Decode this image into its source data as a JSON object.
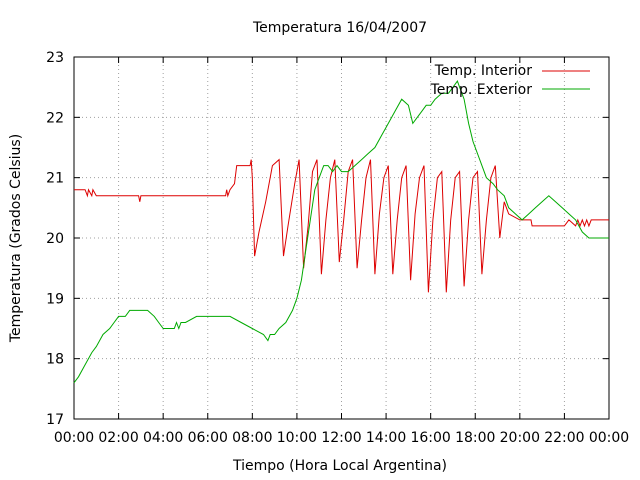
{
  "chart_data": {
    "type": "line",
    "title": "Temperatura 16/04/2007",
    "xlabel": "Tiempo (Hora Local Argentina)",
    "ylabel": "Temperatura (Grados Celsius)",
    "xlim": [
      0,
      24
    ],
    "ylim": [
      17,
      23
    ],
    "x_ticks": [
      {
        "value": 0,
        "label": "00:00"
      },
      {
        "value": 2,
        "label": "02:00"
      },
      {
        "value": 4,
        "label": "04:00"
      },
      {
        "value": 6,
        "label": "06:00"
      },
      {
        "value": 8,
        "label": "08:00"
      },
      {
        "value": 10,
        "label": "10:00"
      },
      {
        "value": 12,
        "label": "12:00"
      },
      {
        "value": 14,
        "label": "14:00"
      },
      {
        "value": 16,
        "label": "16:00"
      },
      {
        "value": 18,
        "label": "18:00"
      },
      {
        "value": 20,
        "label": "20:00"
      },
      {
        "value": 22,
        "label": "22:00"
      },
      {
        "value": 24,
        "label": "00:00"
      }
    ],
    "y_ticks": [
      {
        "value": 17,
        "label": "17"
      },
      {
        "value": 18,
        "label": "18"
      },
      {
        "value": 19,
        "label": "19"
      },
      {
        "value": 20,
        "label": "20"
      },
      {
        "value": 21,
        "label": "21"
      },
      {
        "value": 22,
        "label": "22"
      },
      {
        "value": 23,
        "label": "23"
      }
    ],
    "grid": true,
    "legend_position": "top-right",
    "series": [
      {
        "name": "Temp. Interior",
        "color": "#dd0000",
        "x": [
          0,
          0.3,
          0.5,
          0.6,
          0.65,
          0.8,
          0.85,
          1.0,
          2.5,
          2.9,
          2.95,
          3.0,
          4.0,
          6.0,
          6.8,
          6.85,
          6.9,
          7.0,
          7.2,
          7.3,
          7.6,
          7.9,
          7.95,
          8.0,
          8.1,
          8.3,
          8.6,
          8.9,
          9.2,
          9.4,
          9.6,
          9.9,
          10.1,
          10.3,
          10.5,
          10.7,
          10.9,
          11.1,
          11.3,
          11.5,
          11.7,
          11.9,
          12.1,
          12.3,
          12.5,
          12.7,
          12.9,
          13.1,
          13.3,
          13.5,
          13.7,
          13.9,
          14.1,
          14.3,
          14.5,
          14.7,
          14.9,
          15.1,
          15.3,
          15.5,
          15.7,
          15.9,
          16.1,
          16.3,
          16.5,
          16.7,
          16.9,
          17.1,
          17.3,
          17.5,
          17.7,
          17.9,
          18.1,
          18.3,
          18.5,
          18.7,
          18.9,
          19.1,
          19.3,
          19.5,
          20.0,
          20.5,
          20.55,
          20.6,
          21.5,
          22.0,
          22.2,
          22.5,
          22.6,
          22.7,
          22.8,
          22.9,
          23.0,
          23.1,
          23.2,
          23.3,
          24.0
        ],
        "y": [
          20.8,
          20.8,
          20.8,
          20.7,
          20.8,
          20.7,
          20.8,
          20.7,
          20.7,
          20.7,
          20.6,
          20.7,
          20.7,
          20.7,
          20.7,
          20.8,
          20.7,
          20.8,
          20.9,
          21.2,
          21.2,
          21.2,
          21.3,
          21.0,
          19.7,
          20.1,
          20.6,
          21.2,
          21.3,
          19.7,
          20.2,
          20.9,
          21.3,
          19.5,
          20.2,
          21.1,
          21.3,
          19.4,
          20.3,
          21.0,
          21.3,
          19.6,
          20.3,
          21.1,
          21.3,
          19.5,
          20.3,
          21.0,
          21.3,
          19.4,
          20.4,
          21.0,
          21.2,
          19.4,
          20.3,
          21.0,
          21.2,
          19.3,
          20.4,
          21.0,
          21.2,
          19.1,
          20.3,
          21.0,
          21.1,
          19.1,
          20.3,
          21.0,
          21.1,
          19.2,
          20.3,
          21.0,
          21.1,
          19.4,
          20.3,
          21.0,
          21.2,
          20.0,
          20.6,
          20.4,
          20.3,
          20.3,
          20.2,
          20.2,
          20.2,
          20.2,
          20.3,
          20.2,
          20.3,
          20.2,
          20.3,
          20.2,
          20.3,
          20.2,
          20.3,
          20.3,
          20.3
        ]
      },
      {
        "name": "Temp. Exterior",
        "color": "#00aa00",
        "x": [
          0,
          0.2,
          0.5,
          0.8,
          1.0,
          1.3,
          1.6,
          1.8,
          2.0,
          2.3,
          2.5,
          3.3,
          3.6,
          3.8,
          4.0,
          4.5,
          4.6,
          4.7,
          4.8,
          5.0,
          5.5,
          6.0,
          7.0,
          7.5,
          8.0,
          8.5,
          8.7,
          8.8,
          9.0,
          9.2,
          9.5,
          9.8,
          10.0,
          10.2,
          10.4,
          10.6,
          10.8,
          11.0,
          11.2,
          11.4,
          11.6,
          11.8,
          12.0,
          12.3,
          12.6,
          12.9,
          13.2,
          13.5,
          13.8,
          14.1,
          14.4,
          14.7,
          15.0,
          15.2,
          15.4,
          15.6,
          15.8,
          16.0,
          16.2,
          16.5,
          16.8,
          17.0,
          17.2,
          17.3,
          17.5,
          17.7,
          17.9,
          18.2,
          18.5,
          18.8,
          19.0,
          19.3,
          19.5,
          19.8,
          20.1,
          20.4,
          20.7,
          21.0,
          21.3,
          21.6,
          21.9,
          22.2,
          22.5,
          22.8,
          23.1,
          23.4,
          23.7,
          24.0
        ],
        "y": [
          17.6,
          17.7,
          17.9,
          18.1,
          18.2,
          18.4,
          18.5,
          18.6,
          18.7,
          18.7,
          18.8,
          18.8,
          18.7,
          18.6,
          18.5,
          18.5,
          18.6,
          18.5,
          18.6,
          18.6,
          18.7,
          18.7,
          18.7,
          18.6,
          18.5,
          18.4,
          18.3,
          18.4,
          18.4,
          18.5,
          18.6,
          18.8,
          19.0,
          19.3,
          19.8,
          20.3,
          20.8,
          21.0,
          21.2,
          21.2,
          21.1,
          21.2,
          21.1,
          21.1,
          21.2,
          21.3,
          21.4,
          21.5,
          21.7,
          21.9,
          22.1,
          22.3,
          22.2,
          21.9,
          22.0,
          22.1,
          22.2,
          22.2,
          22.3,
          22.4,
          22.4,
          22.5,
          22.6,
          22.5,
          22.3,
          21.9,
          21.6,
          21.3,
          21.0,
          20.9,
          20.8,
          20.7,
          20.5,
          20.4,
          20.3,
          20.4,
          20.5,
          20.6,
          20.7,
          20.6,
          20.5,
          20.4,
          20.3,
          20.1,
          20.0,
          20.0,
          20.0,
          20.0
        ]
      }
    ]
  }
}
